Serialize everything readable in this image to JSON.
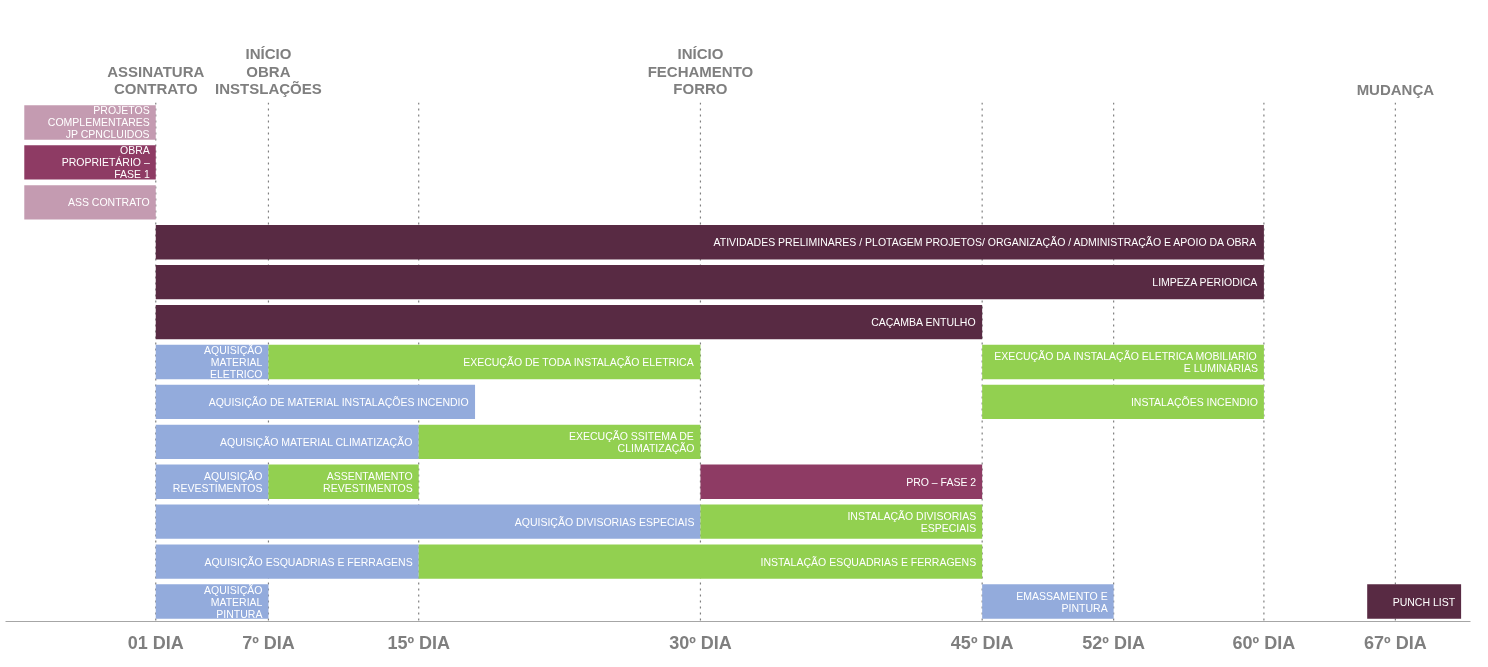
{
  "chart_data": {
    "type": "bar",
    "orientation": "horizontal",
    "categories": [
      null,
      null,
      null,
      null,
      null,
      null,
      null,
      null,
      null,
      null,
      null,
      null,
      null
    ],
    "xlim": [
      -7,
      71
    ],
    "xticks": [
      {
        "value": 1,
        "label": "01 DIA"
      },
      {
        "value": 7,
        "label": "7º DIA"
      },
      {
        "value": 15,
        "label": "15º DIA"
      },
      {
        "value": 30,
        "label": "30º DIA"
      },
      {
        "value": 45,
        "label": "45º DIA"
      },
      {
        "value": 52,
        "label": "52º DIA"
      },
      {
        "value": 60,
        "label": "60º DIA"
      },
      {
        "value": 67,
        "label": "67º DIA"
      }
    ],
    "tick_labels": "x",
    "ref_lines": [
      {
        "axis": "x",
        "value": 1,
        "label": "ASSINATURA\nCONTRATO",
        "line_style": "dotted"
      },
      {
        "axis": "x",
        "value": 7,
        "label": "INÍCIO\nOBRA\nINSTSLAÇÕES",
        "line_style": "dotted"
      },
      {
        "axis": "x",
        "value": 15,
        "label": null,
        "line_style": "dotted"
      },
      {
        "axis": "x",
        "value": 30,
        "label": "INÍCIO\nFECHAMENTO\nFORRO",
        "line_style": "dotted"
      },
      {
        "axis": "x",
        "value": 45,
        "label": null,
        "line_style": "dotted"
      },
      {
        "axis": "x",
        "value": 52,
        "label": null,
        "line_style": "dotted"
      },
      {
        "axis": "x",
        "value": 60,
        "label": null,
        "line_style": "dotted"
      },
      {
        "axis": "x",
        "value": 67,
        "label": "MUDANÇA",
        "line_style": "dotted"
      }
    ],
    "series": [
      {
        "name": "PROJETOS\nCOMPLEMENTARES\nJP CPNCLUIDOS",
        "color": "#c49bb1",
        "base": [
          -6,
          null,
          null,
          null,
          null,
          null,
          null,
          null,
          null,
          null,
          null,
          null,
          null
        ],
        "values": [
          7,
          null,
          null,
          null,
          null,
          null,
          null,
          null,
          null,
          null,
          null,
          null,
          null
        ]
      },
      {
        "name": "OBRA\nPROPRIETÁRIO –\nFASE 1",
        "color": "#8e3b64",
        "base": [
          null,
          -6,
          null,
          null,
          null,
          null,
          null,
          null,
          null,
          null,
          null,
          null,
          null
        ],
        "values": [
          null,
          7,
          null,
          null,
          null,
          null,
          null,
          null,
          null,
          null,
          null,
          null,
          null
        ]
      },
      {
        "name": "ASS CONTRATO",
        "color": "#c49bb1",
        "base": [
          null,
          null,
          -6,
          null,
          null,
          null,
          null,
          null,
          null,
          null,
          null,
          null,
          null
        ],
        "values": [
          null,
          null,
          7,
          null,
          null,
          null,
          null,
          null,
          null,
          null,
          null,
          null,
          null
        ]
      },
      {
        "name": "ATIVIDADES PRELIMINARES / PLOTAGEM PROJETOS/ ORGANIZAÇÃO / ADMINISTRAÇÃO E APOIO DA OBRA",
        "color": "#582a43",
        "base": [
          null,
          null,
          null,
          1,
          null,
          null,
          null,
          null,
          null,
          null,
          null,
          null,
          null
        ],
        "values": [
          null,
          null,
          null,
          59,
          null,
          null,
          null,
          null,
          null,
          null,
          null,
          null,
          null
        ]
      },
      {
        "name": "LIMPEZA PERIODICA",
        "color": "#582a43",
        "base": [
          null,
          null,
          null,
          null,
          1,
          null,
          null,
          null,
          null,
          null,
          null,
          null,
          null
        ],
        "values": [
          null,
          null,
          null,
          null,
          59,
          null,
          null,
          null,
          null,
          null,
          null,
          null,
          null
        ]
      },
      {
        "name": "CAÇAMBA ENTULHO",
        "color": "#582a43",
        "base": [
          null,
          null,
          null,
          null,
          null,
          1,
          null,
          null,
          null,
          null,
          null,
          null,
          null
        ],
        "values": [
          null,
          null,
          null,
          null,
          null,
          44,
          null,
          null,
          null,
          null,
          null,
          null,
          null
        ]
      },
      {
        "name": "AQUISIÇÃO\nMATERIAL\nELETRICO",
        "color": "#93abdc",
        "base": [
          null,
          null,
          null,
          null,
          null,
          null,
          1,
          null,
          null,
          null,
          null,
          null,
          null
        ],
        "values": [
          null,
          null,
          null,
          null,
          null,
          null,
          6,
          null,
          null,
          null,
          null,
          null,
          null
        ]
      },
      {
        "name": "EXECUÇÃO DE TODA INSTALAÇÃO ELETRICA",
        "color": "#92d050",
        "base": [
          null,
          null,
          null,
          null,
          null,
          null,
          7,
          null,
          null,
          null,
          null,
          null,
          null
        ],
        "values": [
          null,
          null,
          null,
          null,
          null,
          null,
          23,
          null,
          null,
          null,
          null,
          null,
          null
        ]
      },
      {
        "name": "EXECUÇÃO DA INSTALAÇÃO ELETRICA MOBILIARIO\nE LUMINÁRIAS",
        "color": "#92d050",
        "base": [
          null,
          null,
          null,
          null,
          null,
          null,
          45,
          null,
          null,
          null,
          null,
          null,
          null
        ],
        "values": [
          null,
          null,
          null,
          null,
          null,
          null,
          15,
          null,
          null,
          null,
          null,
          null,
          null
        ]
      },
      {
        "name": "AQUISIÇÃO DE MATERIAL INSTALAÇÕES INCENDIO",
        "color": "#93abdc",
        "base": [
          null,
          null,
          null,
          null,
          null,
          null,
          null,
          1,
          null,
          null,
          null,
          null,
          null
        ],
        "values": [
          null,
          null,
          null,
          null,
          null,
          null,
          null,
          17,
          null,
          null,
          null,
          null,
          null
        ]
      },
      {
        "name": "INSTALAÇÕES INCENDIO",
        "color": "#92d050",
        "base": [
          null,
          null,
          null,
          null,
          null,
          null,
          null,
          45,
          null,
          null,
          null,
          null,
          null
        ],
        "values": [
          null,
          null,
          null,
          null,
          null,
          null,
          null,
          15,
          null,
          null,
          null,
          null,
          null
        ]
      },
      {
        "name": "AQUISIÇÃO MATERIAL CLIMATIZAÇÃO",
        "color": "#93abdc",
        "base": [
          null,
          null,
          null,
          null,
          null,
          null,
          null,
          null,
          1,
          null,
          null,
          null,
          null
        ],
        "values": [
          null,
          null,
          null,
          null,
          null,
          null,
          null,
          null,
          14,
          null,
          null,
          null,
          null
        ]
      },
      {
        "name": "EXECUÇÃO SSITEMA DE\nCLIMATIZAÇÃO",
        "color": "#92d050",
        "base": [
          null,
          null,
          null,
          null,
          null,
          null,
          null,
          null,
          15,
          null,
          null,
          null,
          null
        ],
        "values": [
          null,
          null,
          null,
          null,
          null,
          null,
          null,
          null,
          15,
          null,
          null,
          null,
          null
        ]
      },
      {
        "name": "AQUISIÇÃO\nREVESTIMENTOS",
        "color": "#93abdc",
        "base": [
          null,
          null,
          null,
          null,
          null,
          null,
          null,
          null,
          null,
          1,
          null,
          null,
          null
        ],
        "values": [
          null,
          null,
          null,
          null,
          null,
          null,
          null,
          null,
          null,
          6,
          null,
          null,
          null
        ]
      },
      {
        "name": "ASSENTAMENTO\nREVESTIMENTOS",
        "color": "#92d050",
        "base": [
          null,
          null,
          null,
          null,
          null,
          null,
          null,
          null,
          null,
          7,
          null,
          null,
          null
        ],
        "values": [
          null,
          null,
          null,
          null,
          null,
          null,
          null,
          null,
          null,
          8,
          null,
          null,
          null
        ]
      },
      {
        "name": "PRO – FASE 2",
        "color": "#8e3b64",
        "base": [
          null,
          null,
          null,
          null,
          null,
          null,
          null,
          null,
          null,
          30,
          null,
          null,
          null
        ],
        "values": [
          null,
          null,
          null,
          null,
          null,
          null,
          null,
          null,
          null,
          15,
          null,
          null,
          null
        ]
      },
      {
        "name": "AQUISIÇÃO DIVISORIAS ESPECIAIS",
        "color": "#93abdc",
        "base": [
          null,
          null,
          null,
          null,
          null,
          null,
          null,
          null,
          null,
          null,
          1,
          null,
          null
        ],
        "values": [
          null,
          null,
          null,
          null,
          null,
          null,
          null,
          null,
          null,
          null,
          29,
          null,
          null
        ]
      },
      {
        "name": "INSTALAÇÃO DIVISORIAS\nESPECIAIS",
        "color": "#92d050",
        "base": [
          null,
          null,
          null,
          null,
          null,
          null,
          null,
          null,
          null,
          null,
          30,
          null,
          null
        ],
        "values": [
          null,
          null,
          null,
          null,
          null,
          null,
          null,
          null,
          null,
          null,
          15,
          null,
          null
        ]
      },
      {
        "name": "AQUISIÇÃO ESQUADRIAS E FERRAGENS",
        "color": "#93abdc",
        "base": [
          null,
          null,
          null,
          null,
          null,
          null,
          null,
          null,
          null,
          null,
          null,
          1,
          null
        ],
        "values": [
          null,
          null,
          null,
          null,
          null,
          null,
          null,
          null,
          null,
          null,
          null,
          14,
          null
        ]
      },
      {
        "name": "INSTALAÇÃO ESQUADRIAS E FERRAGENS",
        "color": "#92d050",
        "base": [
          null,
          null,
          null,
          null,
          null,
          null,
          null,
          null,
          null,
          null,
          null,
          15,
          null
        ],
        "values": [
          null,
          null,
          null,
          null,
          null,
          null,
          null,
          null,
          null,
          null,
          null,
          30,
          null
        ]
      },
      {
        "name": "AQUISIÇÃO\nMATERIAL\nPINTURA",
        "color": "#93abdc",
        "base": [
          null,
          null,
          null,
          null,
          null,
          null,
          null,
          null,
          null,
          null,
          null,
          null,
          1
        ],
        "values": [
          null,
          null,
          null,
          null,
          null,
          null,
          null,
          null,
          null,
          null,
          null,
          null,
          6
        ]
      },
      {
        "name": "EMASSAMENTO E\nPINTURA",
        "color": "#93abdc",
        "base": [
          null,
          null,
          null,
          null,
          null,
          null,
          null,
          null,
          null,
          null,
          null,
          null,
          45
        ],
        "values": [
          null,
          null,
          null,
          null,
          null,
          null,
          null,
          null,
          null,
          null,
          null,
          null,
          7
        ]
      },
      {
        "name": "PUNCH LIST",
        "color": "#582a43",
        "base": [
          null,
          null,
          null,
          null,
          null,
          null,
          null,
          null,
          null,
          null,
          null,
          null,
          65.5
        ],
        "values": [
          null,
          null,
          null,
          null,
          null,
          null,
          null,
          null,
          null,
          null,
          null,
          null,
          5
        ]
      }
    ]
  }
}
